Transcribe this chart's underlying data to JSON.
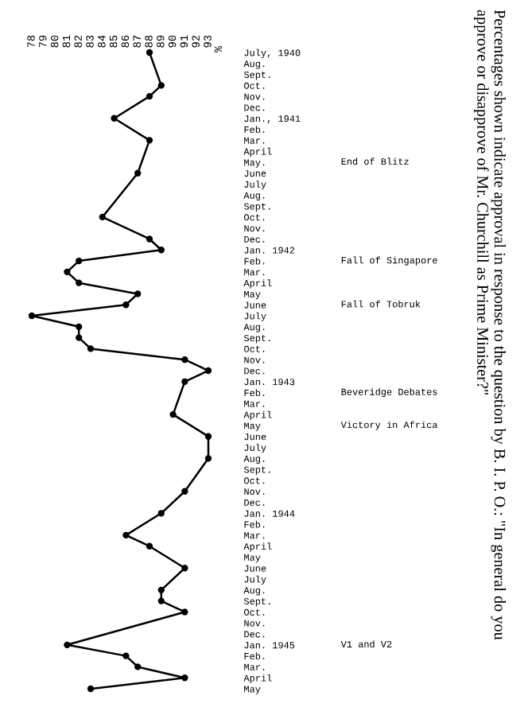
{
  "chart_data": {
    "type": "line",
    "orientation": "horizontal",
    "title": "Percentages shown indicate approval in response to the question by B. I. P. O.: \"In general do you approve or disapprove of Mr. Churchill as Prime Minister?\"",
    "categories": [
      "July, 1940",
      "Aug.",
      "Sept.",
      "Oct.",
      "Nov.",
      "Dec.",
      "Jan., 1941",
      "Feb.",
      "Mar.",
      "April",
      "May.",
      "June",
      "July",
      "Aug.",
      "Sept.",
      "Oct.",
      "Nov.",
      "Dec.",
      "Jan. 1942",
      "Feb.",
      "Mar.",
      "April",
      "May",
      "June",
      "July",
      "Aug.",
      "Sept.",
      "Oct.",
      "Nov.",
      "Dec.",
      "Jan. 1943",
      "Feb.",
      "Mar.",
      "April",
      "May",
      "June",
      "July",
      "Aug.",
      "Sept.",
      "Oct.",
      "Nov.",
      "Dec.",
      "Jan. 1944",
      "Feb.",
      "Mar.",
      "April",
      "May",
      "June",
      "July",
      "Aug.",
      "Sept.",
      "Oct.",
      "Nov.",
      "Dec.",
      "Jan. 1945",
      "Feb.",
      "Mar.",
      "April",
      "May"
    ],
    "values": [
      88,
      null,
      null,
      89,
      88,
      null,
      85,
      null,
      88,
      null,
      null,
      87,
      null,
      null,
      null,
      84,
      null,
      88,
      89,
      82,
      81,
      82,
      87,
      86,
      78,
      82,
      82,
      83,
      91,
      93,
      91,
      null,
      null,
      90,
      null,
      93,
      null,
      93,
      null,
      null,
      91,
      null,
      89,
      null,
      86,
      88,
      null,
      91,
      null,
      89,
      89,
      91,
      null,
      null,
      81,
      86,
      87,
      91,
      83
    ],
    "color": "#000000",
    "marker": "circle",
    "xlim": [
      78,
      93
    ],
    "xticks": [
      78,
      79,
      80,
      81,
      82,
      83,
      84,
      85,
      86,
      87,
      88,
      89,
      90,
      91,
      92,
      93
    ],
    "annotations": [
      "%",
      "End of Blitz",
      "Fall of Singapore",
      "Fall of Tobruk",
      "Beveridge Debates",
      "Victory in Africa",
      "V1 and V2"
    ]
  }
}
